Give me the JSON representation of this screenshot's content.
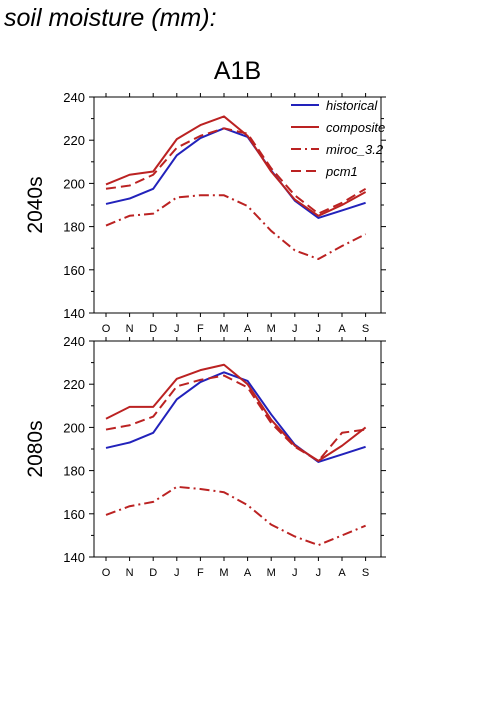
{
  "header": {
    "label": "soil moisture (mm):"
  },
  "scenario": "A1B",
  "colors": {
    "historical": "#2222bb",
    "projection": "#bb2222"
  },
  "chart_data": [
    {
      "type": "line",
      "title": "A1B",
      "ylabel": "2040s",
      "categories": [
        "O",
        "N",
        "D",
        "J",
        "F",
        "M",
        "A",
        "M",
        "J",
        "J",
        "A",
        "S"
      ],
      "ylim": [
        140,
        240
      ],
      "yticks": [
        140,
        160,
        180,
        200,
        220,
        240
      ],
      "grid": false,
      "legend": "top-right",
      "series": [
        {
          "name": "historical",
          "color": "#2222bb",
          "dash": "solid",
          "values": [
            190.5,
            193,
            197.5,
            213,
            221,
            225.5,
            221.5,
            206,
            192,
            184,
            187.5,
            191
          ]
        },
        {
          "name": "composite",
          "color": "#bb2222",
          "dash": "solid",
          "values": [
            199.5,
            204,
            205.5,
            220.5,
            227,
            231,
            222,
            205.5,
            192.5,
            185,
            190,
            196
          ]
        },
        {
          "name": "miroc_3.2",
          "color": "#bb2222",
          "dash": "dashdot",
          "values": [
            180.5,
            185,
            186,
            193.5,
            194.5,
            194.5,
            189.5,
            178,
            169,
            165,
            171,
            176.5
          ]
        },
        {
          "name": "pcm1",
          "color": "#bb2222",
          "dash": "dash",
          "values": [
            197.5,
            199,
            204,
            216.5,
            222,
            225.5,
            223,
            207,
            194.5,
            186,
            191,
            197.5
          ]
        }
      ]
    },
    {
      "type": "line",
      "ylabel": "2080s",
      "categories": [
        "O",
        "N",
        "D",
        "J",
        "F",
        "M",
        "A",
        "M",
        "J",
        "J",
        "A",
        "S"
      ],
      "ylim": [
        140,
        240
      ],
      "yticks": [
        140,
        160,
        180,
        200,
        220,
        240
      ],
      "grid": false,
      "series": [
        {
          "name": "historical",
          "color": "#2222bb",
          "dash": "solid",
          "values": [
            190.5,
            193,
            197.5,
            213,
            221,
            225.5,
            221.5,
            206,
            192,
            184,
            187.5,
            191
          ]
        },
        {
          "name": "composite",
          "color": "#bb2222",
          "dash": "solid",
          "values": [
            204,
            209.5,
            209.5,
            222.5,
            226.5,
            229,
            220,
            203.5,
            191.5,
            184.5,
            191.5,
            200
          ]
        },
        {
          "name": "miroc_3.2",
          "color": "#bb2222",
          "dash": "dashdot",
          "values": [
            159.5,
            163.5,
            165.5,
            172.5,
            171.5,
            170,
            164,
            155,
            149.5,
            145.5,
            150,
            154.5
          ]
        },
        {
          "name": "pcm1",
          "color": "#bb2222",
          "dash": "dash",
          "values": [
            199,
            201,
            205,
            219,
            222,
            224,
            218.5,
            202,
            191,
            184.5,
            197.5,
            199
          ]
        }
      ]
    }
  ]
}
